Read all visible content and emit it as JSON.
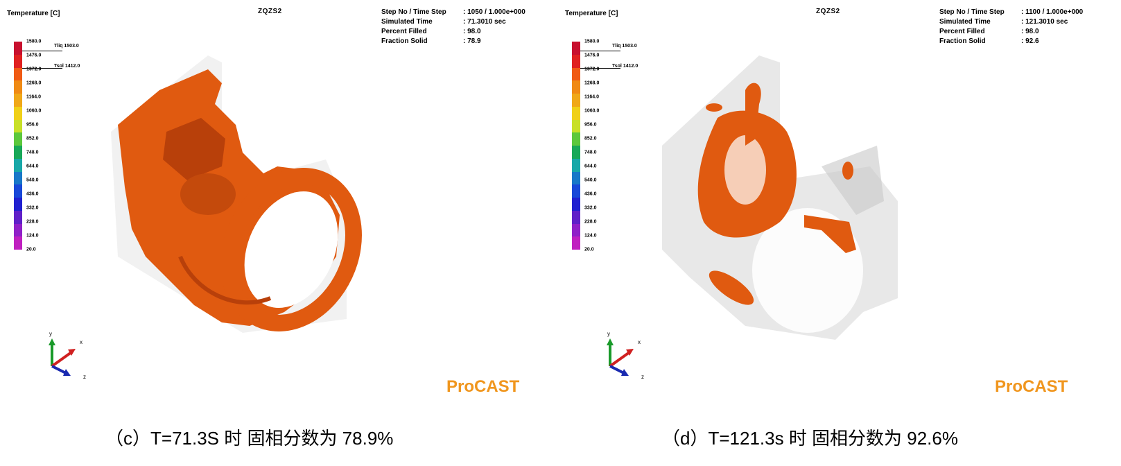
{
  "panels": [
    {
      "id": "c",
      "temp_title": "Temperature [C]",
      "model_title": "ZQZS2",
      "info": [
        {
          "label": "Step No / Time Step",
          "value": ": 1050 / 1.000e+000"
        },
        {
          "label": "Simulated Time",
          "value": ": 71.3010 sec"
        },
        {
          "label": "Percent Filled",
          "value": ": 98.0"
        },
        {
          "label": "Fraction Solid",
          "value": ": 78.9"
        }
      ],
      "legend_ticks": [
        "1580.0",
        "1476.0",
        "1372.0",
        "1268.0",
        "1164.0",
        "1060.0",
        "956.0",
        "852.0",
        "748.0",
        "644.0",
        "540.0",
        "436.0",
        "332.0",
        "228.0",
        "124.0",
        "20.0"
      ],
      "tliq": "Tliq 1503.0",
      "tsol": "Tsol 1412.0",
      "axis": {
        "x": "x",
        "y": "y",
        "z": "z"
      },
      "logo": "ProCAST",
      "caption": "（c）T=71.3S 时 固相分数为 78.9%"
    },
    {
      "id": "d",
      "temp_title": "Temperature [C]",
      "model_title": "ZQZS2",
      "info": [
        {
          "label": "Step No / Time Step",
          "value": ": 1100 / 1.000e+000"
        },
        {
          "label": "Simulated Time",
          "value": ": 121.3010 sec"
        },
        {
          "label": "Percent Filled",
          "value": ": 98.0"
        },
        {
          "label": "Fraction Solid",
          "value": ": 92.6"
        }
      ],
      "legend_ticks": [
        "1580.0",
        "1476.0",
        "1372.0",
        "1268.0",
        "1164.0",
        "1060.0",
        "956.0",
        "852.0",
        "748.0",
        "644.0",
        "540.0",
        "436.0",
        "332.0",
        "228.0",
        "124.0",
        "20.0"
      ],
      "tliq": "Tliq 1503.0",
      "tsol": "Tsol 1412.0",
      "axis": {
        "x": "x",
        "y": "y",
        "z": "z"
      },
      "logo": "ProCAST",
      "caption": "（d）T=121.3s 时 固相分数为 92.6%"
    }
  ],
  "colors": {
    "casting": "#e05a10",
    "casting_dark": "#b8400a",
    "mold": "#d8d8d8",
    "logo": "#f0961e",
    "legend_scale": [
      "#c8102e",
      "#e02020",
      "#f05a14",
      "#f08a14",
      "#f0a818",
      "#f0d018",
      "#c8e028",
      "#5cc83c",
      "#18a858",
      "#18a8a8",
      "#1878c8",
      "#1848d8",
      "#2020d0",
      "#6020c8",
      "#9020c8",
      "#c020c0"
    ]
  }
}
